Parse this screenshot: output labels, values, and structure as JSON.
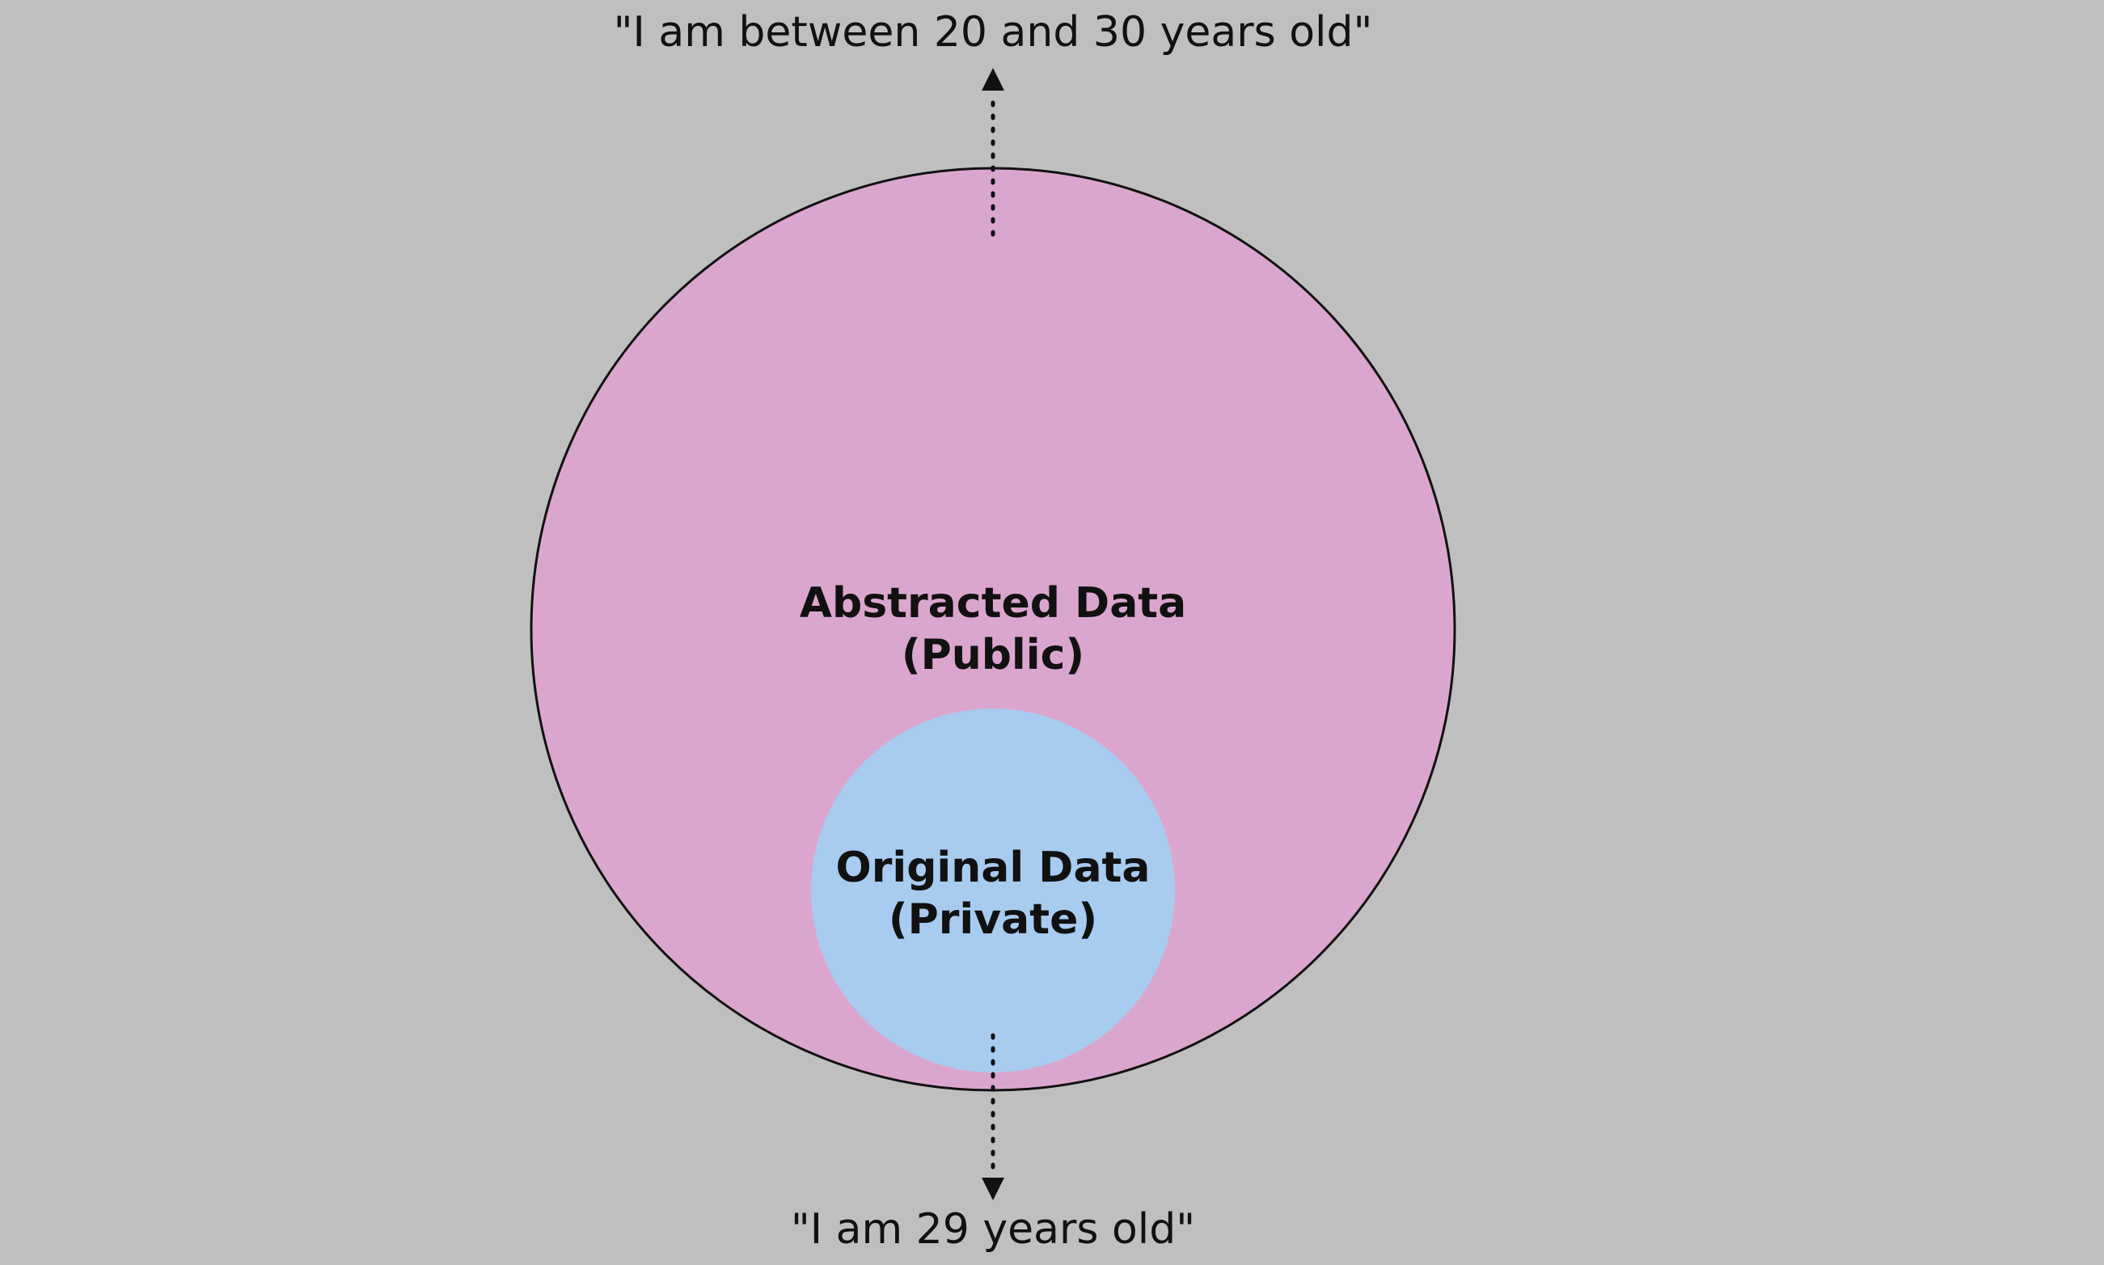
{
  "diagram": {
    "public_quote": "\"I am between 20 and 30 years old\"",
    "private_quote": "\"I am 29 years old\"",
    "outer_circle": {
      "line1": "Abstracted Data",
      "line2": "(Public)"
    },
    "inner_circle": {
      "line1": "Original Data",
      "line2": "(Private)"
    }
  },
  "colors": {
    "background": "#bfbfbf",
    "outer_circle_fill": "#dba6ce",
    "outer_circle_stroke": "#111111",
    "inner_circle_fill": "#a8cbf0",
    "arrow": "#111111",
    "text": "#111111"
  }
}
